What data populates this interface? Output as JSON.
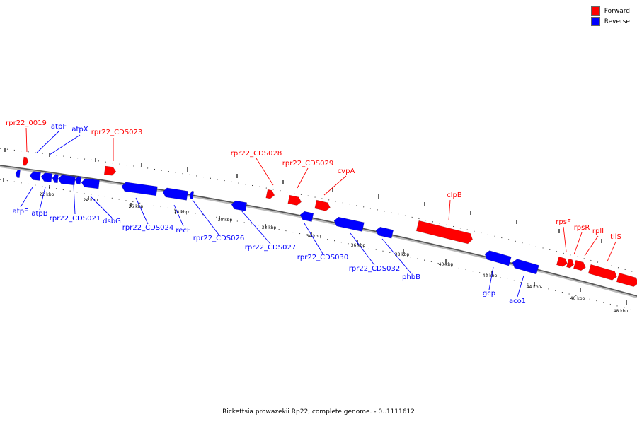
{
  "legend": {
    "forward": {
      "label": "Forward",
      "color": "#ff0000"
    },
    "reverse": {
      "label": "Reverse",
      "color": "#0000ff"
    }
  },
  "caption": "Rickettsia prowazekii Rp22, complete genome. - 0..1111612",
  "axis_ticks": [
    "22 kbp",
    "24 kbp",
    "26 kbp",
    "28 kbp",
    "30 kbp",
    "32 kbp",
    "34 kbp",
    "36 kbp",
    "38 kbp",
    "40 kbp",
    "42 kbp",
    "44 kbp",
    "46 kbp",
    "48 kbp"
  ],
  "genes": [
    {
      "label": "rpr22_0019",
      "strand": "forward"
    },
    {
      "label": "atpF",
      "strand": "reverse"
    },
    {
      "label": "atpX",
      "strand": "reverse"
    },
    {
      "label": "rpr22_CDS023",
      "strand": "forward"
    },
    {
      "label": "rpr22_CDS028",
      "strand": "forward"
    },
    {
      "label": "rpr22_CDS029",
      "strand": "forward"
    },
    {
      "label": "cvpA",
      "strand": "forward"
    },
    {
      "label": "clpB",
      "strand": "forward"
    },
    {
      "label": "rpsF",
      "strand": "forward"
    },
    {
      "label": "rpsR",
      "strand": "forward"
    },
    {
      "label": "rplI",
      "strand": "forward"
    },
    {
      "label": "tilS",
      "strand": "forward"
    },
    {
      "label": "atpE",
      "strand": "reverse"
    },
    {
      "label": "atpB",
      "strand": "reverse"
    },
    {
      "label": "rpr22_CDS021",
      "strand": "reverse"
    },
    {
      "label": "dsbG",
      "strand": "reverse"
    },
    {
      "label": "rpr22_CDS024",
      "strand": "reverse"
    },
    {
      "label": "recF",
      "strand": "reverse"
    },
    {
      "label": "rpr22_CDS026",
      "strand": "reverse"
    },
    {
      "label": "rpr22_CDS027",
      "strand": "reverse"
    },
    {
      "label": "rpr22_CDS030",
      "strand": "reverse"
    },
    {
      "label": "rpr22_CDS032",
      "strand": "reverse"
    },
    {
      "label": "phbB",
      "strand": "reverse"
    },
    {
      "label": "gcp",
      "strand": "reverse"
    },
    {
      "label": "aco1",
      "strand": "reverse"
    }
  ]
}
